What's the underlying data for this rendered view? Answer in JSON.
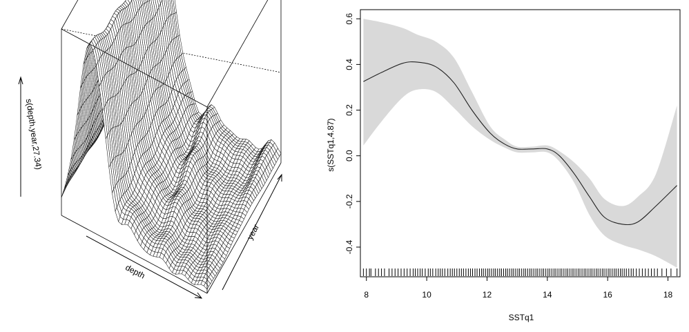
{
  "chart_data": [
    {
      "type": "surface",
      "zlabel": "s(depth,year,27.34)",
      "xlabel": "depth",
      "ylabel": "year",
      "grid": true
    },
    {
      "type": "line",
      "xlabel": "SSTq1",
      "ylabel": "s(SSTq1,4.87)",
      "xlim": [
        7.8,
        18.4
      ],
      "ylim": [
        -0.53,
        0.64
      ],
      "x_ticks": [
        "8",
        "10",
        "12",
        "14",
        "16",
        "18"
      ],
      "y_ticks": [
        "-0.4",
        "-0.2",
        "0.0",
        "0.2",
        "0.4",
        "0.6"
      ],
      "series": [
        {
          "x": [
            7.9,
            8.5,
            9.2,
            9.7,
            10.3,
            10.9,
            11.5,
            12.1,
            12.6,
            13.0,
            13.5,
            14.0,
            14.4,
            14.9,
            15.4,
            15.9,
            16.5,
            17.0,
            17.6,
            18.3
          ],
          "values": [
            0.325,
            0.365,
            0.405,
            0.41,
            0.39,
            0.32,
            0.2,
            0.1,
            0.05,
            0.03,
            0.03,
            0.03,
            0.0,
            -0.08,
            -0.18,
            -0.27,
            -0.3,
            -0.29,
            -0.22,
            -0.13
          ]
        },
        {
          "x": [
            7.9,
            8.5,
            9.2,
            9.7,
            10.3,
            10.9,
            11.5,
            12.1,
            12.6,
            13.0,
            13.5,
            14.0,
            14.4,
            14.9,
            15.4,
            15.9,
            16.5,
            17.0,
            17.6,
            18.3
          ],
          "values": [
            0.6,
            0.585,
            0.56,
            0.53,
            0.5,
            0.43,
            0.28,
            0.13,
            0.07,
            0.04,
            0.04,
            0.045,
            0.02,
            -0.03,
            -0.1,
            -0.19,
            -0.22,
            -0.18,
            -0.08,
            0.22
          ]
        },
        {
          "x": [
            7.9,
            8.5,
            9.2,
            9.7,
            10.3,
            10.9,
            11.5,
            12.1,
            12.6,
            13.0,
            13.5,
            14.0,
            14.4,
            14.9,
            15.4,
            15.9,
            16.5,
            17.0,
            17.6,
            18.3
          ],
          "values": [
            0.045,
            0.15,
            0.255,
            0.29,
            0.28,
            0.21,
            0.13,
            0.07,
            0.035,
            0.015,
            0.015,
            0.015,
            -0.025,
            -0.12,
            -0.26,
            -0.35,
            -0.39,
            -0.41,
            -0.44,
            -0.49
          ]
        }
      ],
      "rug": [
        7.9,
        8.0,
        8.1,
        8.15,
        8.3,
        8.4,
        8.5,
        8.6,
        8.75,
        8.85,
        8.95,
        9.05,
        9.15,
        9.25,
        9.35,
        9.45,
        9.55,
        9.62,
        9.7,
        9.78,
        9.85,
        9.95,
        10.05,
        10.12,
        10.2,
        10.3,
        10.38,
        10.45,
        10.52,
        10.6,
        10.7,
        10.78,
        10.85,
        10.92,
        11.0,
        11.08,
        11.15,
        11.22,
        11.3,
        11.38,
        11.45,
        11.52,
        11.6,
        11.67,
        11.75,
        11.82,
        11.88,
        11.95,
        12.02,
        12.08,
        12.15,
        12.22,
        12.28,
        12.35,
        12.42,
        12.48,
        12.55,
        12.62,
        12.68,
        12.75,
        12.82,
        12.88,
        12.95,
        13.02,
        13.08,
        13.15,
        13.22,
        13.28,
        13.35,
        13.42,
        13.48,
        13.55,
        13.62,
        13.68,
        13.75,
        13.82,
        13.88,
        13.95,
        14.02,
        14.08,
        14.15,
        14.22,
        14.28,
        14.35,
        14.42,
        14.48,
        14.55,
        14.62,
        14.68,
        14.75,
        14.82,
        14.88,
        14.95,
        15.02,
        15.08,
        15.15,
        15.22,
        15.28,
        15.35,
        15.42,
        15.48,
        15.55,
        15.62,
        15.68,
        15.75,
        15.82,
        15.88,
        15.95,
        16.02,
        16.08,
        16.15,
        16.22,
        16.28,
        16.35,
        16.42,
        16.48,
        16.55,
        16.62,
        16.7,
        16.78,
        16.85,
        16.95,
        17.05,
        17.15,
        17.25,
        17.35,
        17.45,
        17.55,
        17.65,
        17.8,
        17.95,
        18.1,
        18.3
      ]
    }
  ]
}
